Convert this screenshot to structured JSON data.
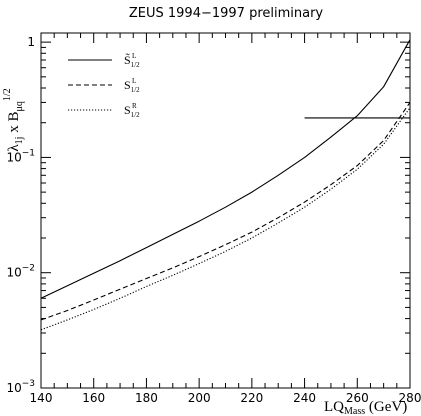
{
  "chart_data": {
    "type": "line",
    "title": "ZEUS 1994−1997 preliminary",
    "xlabel": {
      "main": "LQ",
      "sub": "Mass",
      "unit": " (GeV)"
    },
    "ylabel": {
      "main": "λ",
      "main_sub": "1j",
      "mid": " x B",
      "mid_sub": "μq",
      "sup": "1/2"
    },
    "xlim": [
      140,
      280
    ],
    "ylim": [
      0.001,
      1.2
    ],
    "yscale": "log",
    "xticks": [
      140,
      160,
      180,
      200,
      220,
      240,
      260,
      280
    ],
    "xtick_labels": [
      "140",
      "160",
      "180",
      "200",
      "220",
      "240",
      "260",
      "280"
    ],
    "yticks": [
      {
        "value": 1,
        "label": "1",
        "sup": ""
      },
      {
        "value": 0.1,
        "label": "10",
        "sup": "−1"
      },
      {
        "value": 0.01,
        "label": "10",
        "sup": "−2"
      },
      {
        "value": 0.001,
        "label": "10",
        "sup": "−3"
      }
    ],
    "legend_position": "top-left",
    "series": [
      {
        "name": "S̃",
        "name_sub": "1/2",
        "name_sup": "L",
        "style": "solid",
        "x": [
          140,
          150,
          160,
          170,
          180,
          190,
          200,
          210,
          220,
          230,
          240,
          250,
          260,
          270,
          280
        ],
        "y": [
          0.006,
          0.0077,
          0.0099,
          0.0127,
          0.0165,
          0.0215,
          0.028,
          0.037,
          0.05,
          0.07,
          0.1,
          0.15,
          0.23,
          0.41,
          1.05
        ]
      },
      {
        "name": "S",
        "name_sub": "1/2",
        "name_sup": "L",
        "style": "dashed",
        "x": [
          140,
          150,
          160,
          170,
          180,
          190,
          200,
          210,
          220,
          230,
          240,
          250,
          260,
          270,
          280
        ],
        "y": [
          0.0039,
          0.0047,
          0.0058,
          0.0072,
          0.0089,
          0.011,
          0.0138,
          0.0175,
          0.0225,
          0.03,
          0.041,
          0.058,
          0.085,
          0.14,
          0.3
        ]
      },
      {
        "name": "S",
        "name_sub": "1/2",
        "name_sup": "R",
        "style": "dotted",
        "x": [
          140,
          150,
          160,
          170,
          180,
          190,
          200,
          210,
          220,
          230,
          240,
          250,
          260,
          270,
          280
        ],
        "y": [
          0.0032,
          0.0039,
          0.0048,
          0.006,
          0.0076,
          0.0095,
          0.012,
          0.0153,
          0.02,
          0.027,
          0.037,
          0.053,
          0.079,
          0.13,
          0.27
        ]
      }
    ],
    "annotations": [
      {
        "type": "hline",
        "y": 0.22,
        "x_start": 240,
        "x_end": 280
      }
    ]
  }
}
